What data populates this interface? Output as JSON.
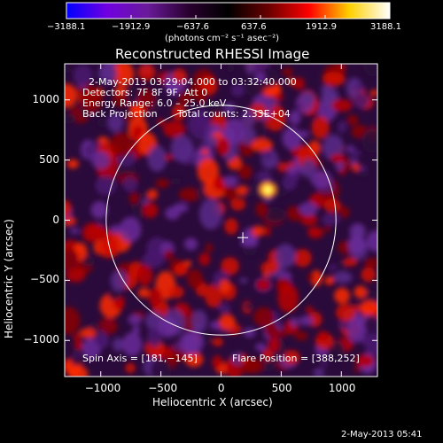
{
  "colorbar": {
    "ticks": [
      "−3188.1",
      "−1912.9",
      "−637.6",
      "637.6",
      "1912.9",
      "3188.1"
    ],
    "units": "(photons cm⁻² s⁻¹ asec⁻²)",
    "stops": [
      "#0000ff",
      "#7000e0",
      "#6a1a9a",
      "#2a0030",
      "#000000",
      "#6a0000",
      "#ff0000",
      "#ffd000",
      "#ffffff"
    ]
  },
  "chart_data": {
    "type": "heatmap",
    "title": "Reconstructed RHESSI Image",
    "xlabel": "Heliocentric X (arcsec)",
    "ylabel": "Heliocentric Y (arcsec)",
    "xlim": [
      -1300,
      1300
    ],
    "ylim": [
      -1300,
      1300
    ],
    "x_ticks": [
      -1000,
      -500,
      0,
      500,
      1000
    ],
    "y_ticks": [
      -1000,
      -500,
      0,
      500,
      1000
    ],
    "x_tick_labels": [
      "−1000",
      "−500",
      "0",
      "500",
      "1000"
    ],
    "y_tick_labels": [
      "−1000",
      "−500",
      "0",
      "500",
      "1000"
    ],
    "solar_limb_radius_arcsec": 955,
    "solar_disk_center": [
      0,
      0
    ],
    "crosshair_position": [
      181,
      -145
    ],
    "flare_source_peak": [
      388,
      252
    ],
    "colorbar_range": [
      -3188.1,
      3188.1
    ],
    "annotations": {
      "time_range": "2-May-2013 03:29:04.000 to 03:32:40.000",
      "detectors": "Detectors: 7F 8F 9F, Att 0",
      "energy_range": "Energy Range: 6.0 – 25.0 keV",
      "method": "Back Projection",
      "total_counts": "Total counts: 2.33E+04",
      "spin_axis": "Spin Axis = [181,−145]",
      "flare_position": "Flare Position = [388,252]"
    }
  },
  "footer": {
    "timestamp": "2-May-2013 05:41"
  }
}
